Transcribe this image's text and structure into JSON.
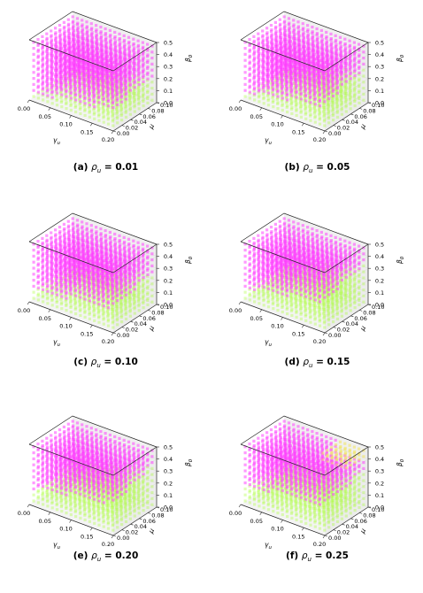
{
  "chart_data": [
    {
      "type": "scatter3d",
      "panel": "(a)",
      "caption_symbol": "ρ",
      "caption_subscript": "u",
      "caption_value": "0.01",
      "threshold_y_low": 0.05,
      "threshold_y_high": 0.23,
      "yellow_patch": false,
      "xlabel": "γ",
      "xlabel_sub": "u",
      "ylabel": "μ",
      "zlabel": "β",
      "zlabel_sub": "0",
      "x_ticks": [
        "0.00",
        "0.05",
        "0.10",
        "0.15",
        "0.20"
      ],
      "y_ticks": [
        "0.00",
        "0.02",
        "0.04",
        "0.06",
        "0.08",
        "0.10"
      ],
      "z_ticks": [
        "0.0",
        "0.1",
        "0.2",
        "0.3",
        "0.4",
        "0.5"
      ],
      "xlim": [
        0,
        0.2
      ],
      "ylim": [
        0,
        0.1
      ],
      "zlim": [
        0,
        0.5
      ],
      "series": [
        {
          "color": "#ff33ff"
        },
        {
          "color": "#aaff33"
        }
      ]
    },
    {
      "type": "scatter3d",
      "panel": "(b)",
      "caption_symbol": "ρ",
      "caption_subscript": "u",
      "caption_value": "0.05",
      "threshold_y_low": 0.05,
      "threshold_y_high": 0.3,
      "yellow_patch": false,
      "xlabel": "γ",
      "xlabel_sub": "u",
      "ylabel": "μ",
      "zlabel": "β",
      "zlabel_sub": "0",
      "x_ticks": [
        "0.00",
        "0.05",
        "0.10",
        "0.15",
        "0.20"
      ],
      "y_ticks": [
        "0.00",
        "0.02",
        "0.04",
        "0.06",
        "0.08",
        "0.10"
      ],
      "z_ticks": [
        "0.0",
        "0.1",
        "0.2",
        "0.3",
        "0.4",
        "0.5"
      ],
      "xlim": [
        0,
        0.2
      ],
      "ylim": [
        0,
        0.1
      ],
      "zlim": [
        0,
        0.5
      ],
      "series": [
        {
          "color": "#ff33ff"
        },
        {
          "color": "#aaff33"
        }
      ]
    },
    {
      "type": "scatter3d",
      "panel": "(c)",
      "caption_symbol": "ρ",
      "caption_subscript": "u",
      "caption_value": "0.10",
      "threshold_y_low": 0.08,
      "threshold_y_high": 0.27,
      "yellow_patch": false,
      "xlabel": "γ",
      "xlabel_sub": "u",
      "ylabel": "μ",
      "zlabel": "β",
      "zlabel_sub": "0",
      "x_ticks": [
        "0.00",
        "0.05",
        "0.10",
        "0.15",
        "0.20"
      ],
      "y_ticks": [
        "0.00",
        "0.02",
        "0.04",
        "0.06",
        "0.08",
        "0.10"
      ],
      "z_ticks": [
        "0.0",
        "0.1",
        "0.2",
        "0.3",
        "0.4",
        "0.5"
      ],
      "xlim": [
        0,
        0.2
      ],
      "ylim": [
        0,
        0.1
      ],
      "zlim": [
        0,
        0.5
      ],
      "series": [
        {
          "color": "#ff33ff"
        },
        {
          "color": "#aaff33"
        }
      ]
    },
    {
      "type": "scatter3d",
      "panel": "(d)",
      "caption_symbol": "ρ",
      "caption_subscript": "u",
      "caption_value": "0.15",
      "threshold_y_low": 0.1,
      "threshold_y_high": 0.35,
      "yellow_patch": false,
      "xlabel": "γ",
      "xlabel_sub": "u",
      "ylabel": "μ",
      "zlabel": "β",
      "zlabel_sub": "0",
      "x_ticks": [
        "0.00",
        "0.05",
        "0.10",
        "0.15",
        "0.20"
      ],
      "y_ticks": [
        "0.00",
        "0.02",
        "0.04",
        "0.06",
        "0.08",
        "0.10"
      ],
      "z_ticks": [
        "0.0",
        "0.1",
        "0.2",
        "0.3",
        "0.4",
        "0.5"
      ],
      "xlim": [
        0,
        0.2
      ],
      "ylim": [
        0,
        0.1
      ],
      "zlim": [
        0,
        0.5
      ],
      "series": [
        {
          "color": "#ff33ff"
        },
        {
          "color": "#aaff33"
        }
      ]
    },
    {
      "type": "scatter3d",
      "panel": "(e)",
      "caption_symbol": "ρ",
      "caption_subscript": "u",
      "caption_value": "0.20",
      "threshold_y_low": 0.12,
      "threshold_y_high": 0.35,
      "yellow_patch": false,
      "xlabel": "γ",
      "xlabel_sub": "u",
      "ylabel": "μ",
      "zlabel": "β",
      "zlabel_sub": "0",
      "x_ticks": [
        "0.00",
        "0.05",
        "0.10",
        "0.15",
        "0.20"
      ],
      "y_ticks": [
        "0.00",
        "0.02",
        "0.04",
        "0.06",
        "0.08",
        "0.10"
      ],
      "z_ticks": [
        "0.0",
        "0.1",
        "0.2",
        "0.3",
        "0.4",
        "0.5"
      ],
      "xlim": [
        0,
        0.2
      ],
      "ylim": [
        0,
        0.1
      ],
      "zlim": [
        0,
        0.5
      ],
      "series": [
        {
          "color": "#ff33ff"
        },
        {
          "color": "#aaff33"
        }
      ]
    },
    {
      "type": "scatter3d",
      "panel": "(f)",
      "caption_symbol": "ρ",
      "caption_subscript": "u",
      "caption_value": "0.25",
      "threshold_y_low": 0.15,
      "threshold_y_high": 0.3,
      "yellow_patch": true,
      "xlabel": "γ",
      "xlabel_sub": "u",
      "ylabel": "μ",
      "zlabel": "β",
      "zlabel_sub": "0",
      "x_ticks": [
        "0.00",
        "0.05",
        "0.10",
        "0.15",
        "0.20"
      ],
      "y_ticks": [
        "0.00",
        "0.02",
        "0.04",
        "0.06",
        "0.08",
        "0.10"
      ],
      "z_ticks": [
        "0.0",
        "0.1",
        "0.2",
        "0.3",
        "0.4",
        "0.5"
      ],
      "xlim": [
        0,
        0.2
      ],
      "ylim": [
        0,
        0.1
      ],
      "zlim": [
        0,
        0.5
      ],
      "series": [
        {
          "color": "#ff33ff"
        },
        {
          "color": "#aaff33"
        },
        {
          "color": "#f2e44c"
        }
      ]
    }
  ]
}
